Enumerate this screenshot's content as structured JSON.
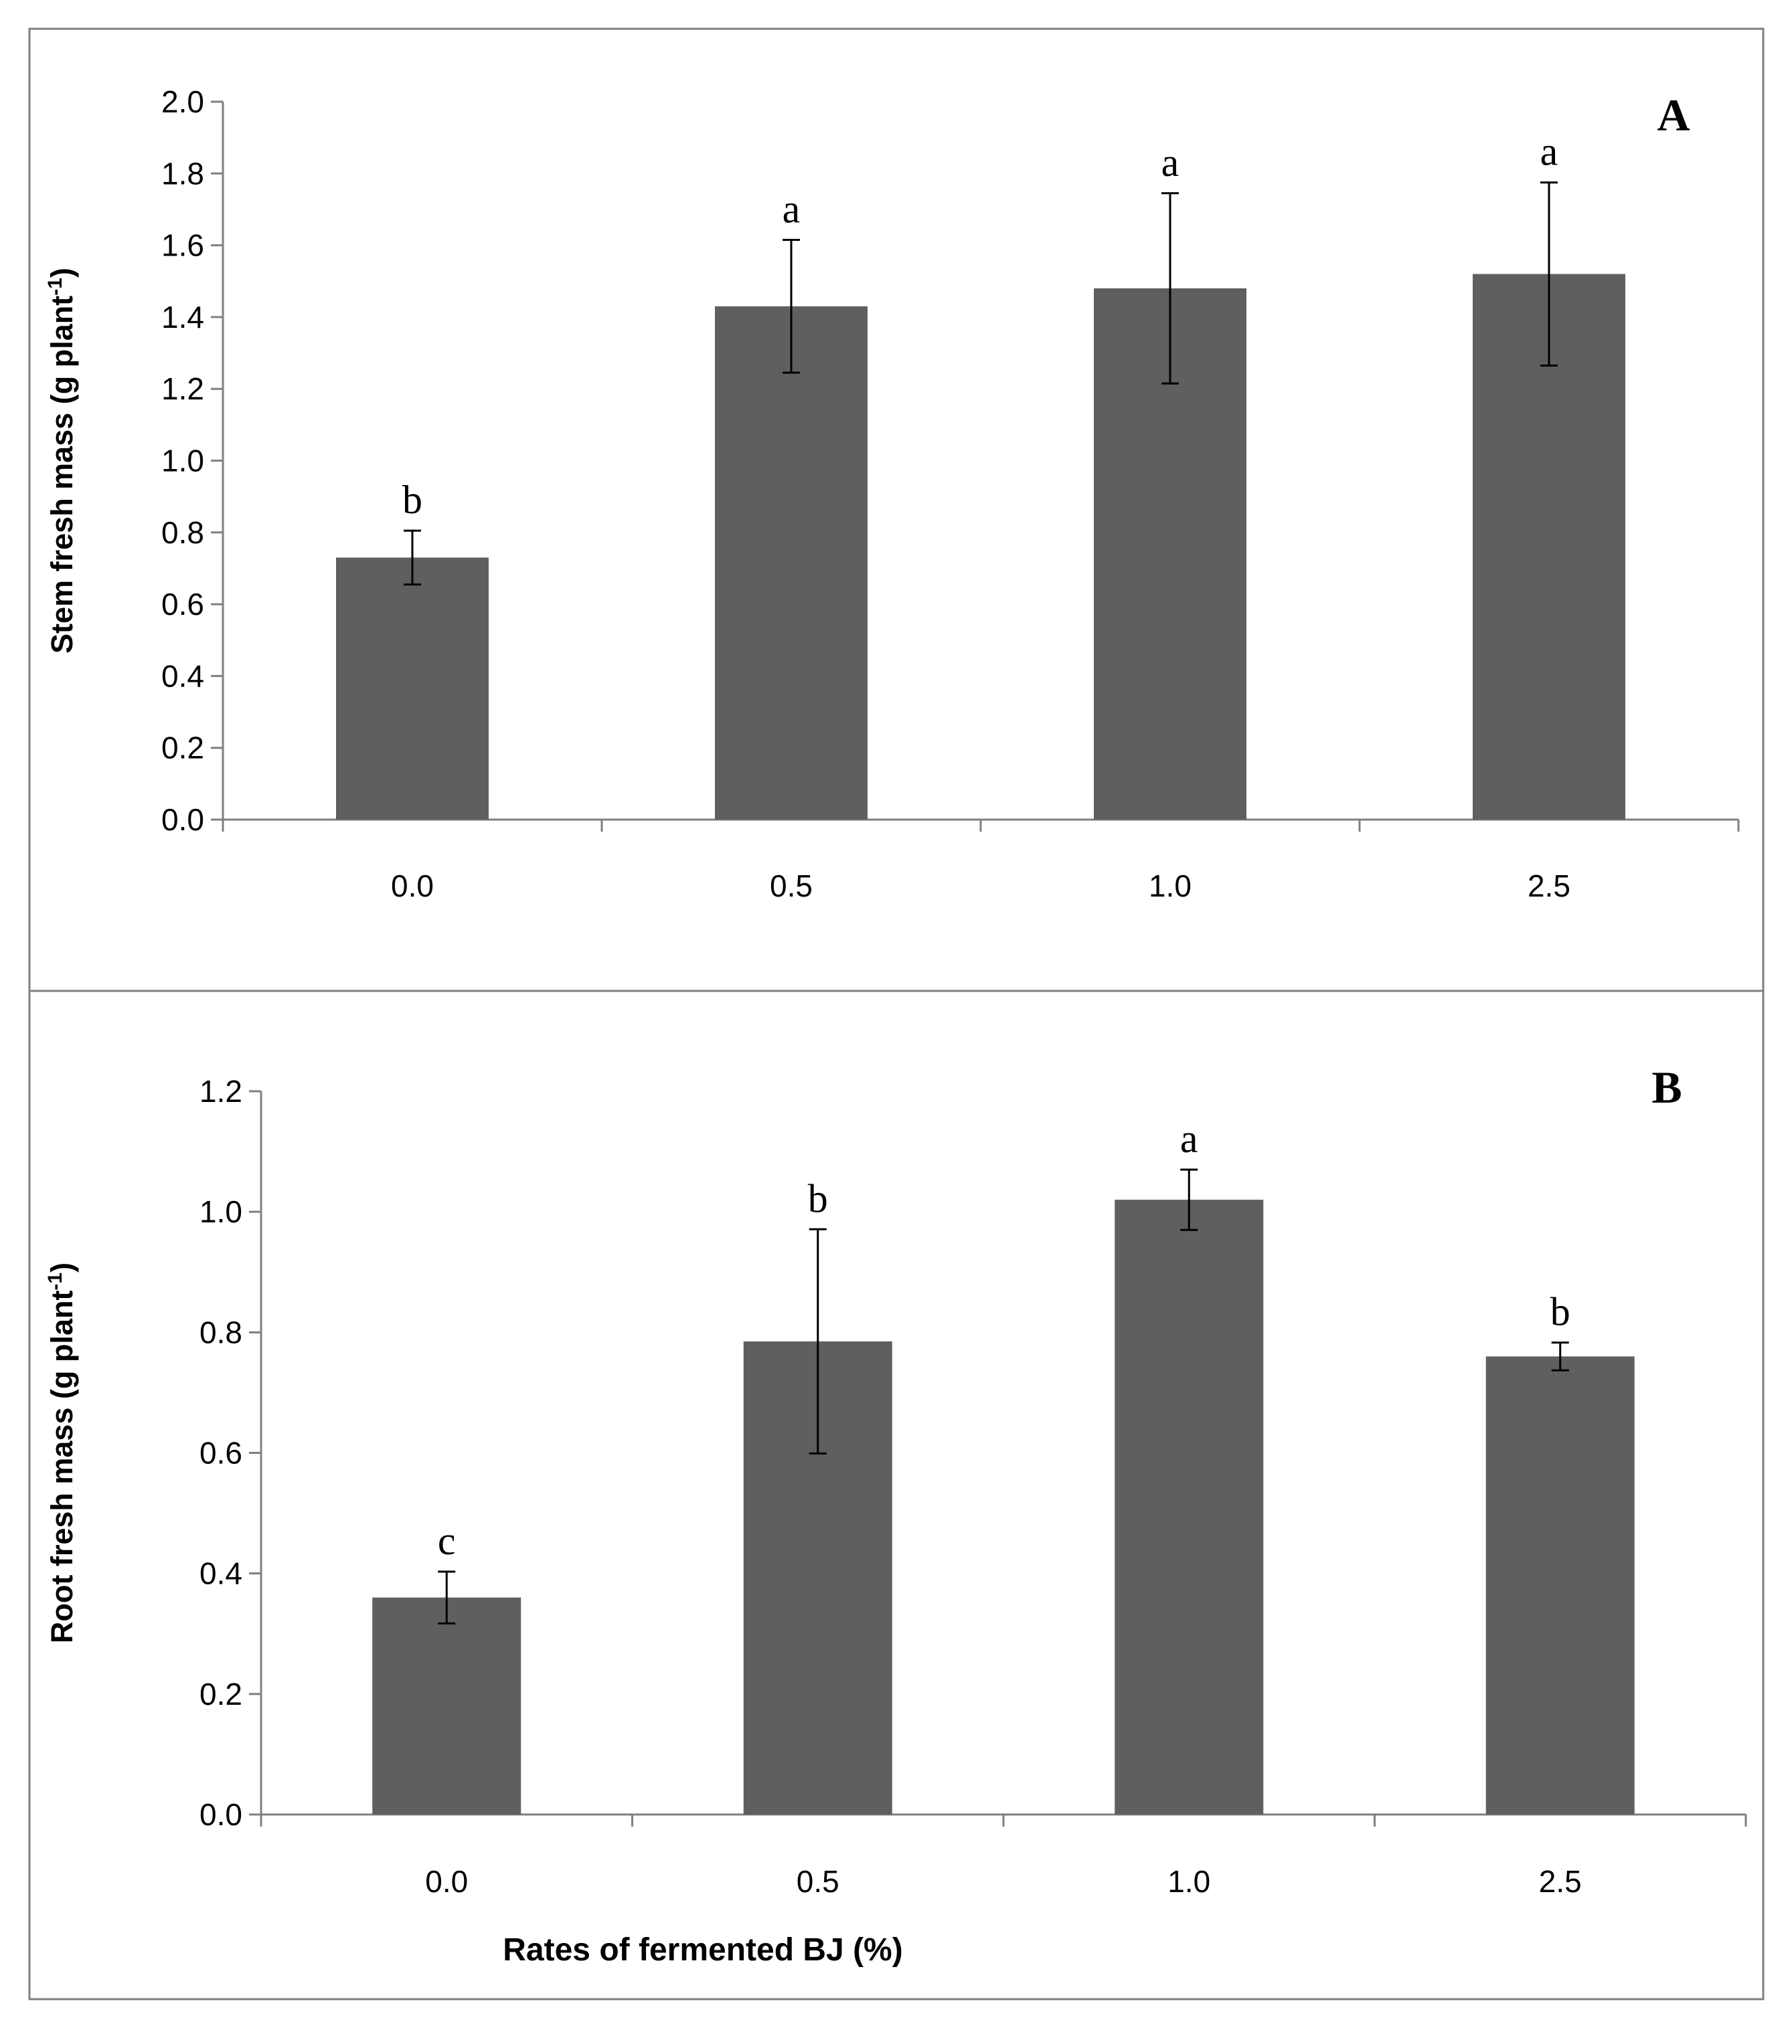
{
  "chart_data": [
    {
      "type": "bar",
      "panel_label": "A",
      "categories": [
        "0.0",
        "0.5",
        "1.0",
        "2.5"
      ],
      "values": [
        0.73,
        1.43,
        1.48,
        1.52
      ],
      "errors": [
        0.075,
        0.185,
        0.265,
        0.255
      ],
      "significance": [
        "b",
        "a",
        "a",
        "a"
      ],
      "ylabel_main": "Stem fresh mass (g plant",
      "ylabel_sup": "-1",
      "ylabel_end": ")",
      "xlabel": "",
      "ylim": [
        0,
        2.0
      ],
      "yticks": [
        "0.0",
        "0.2",
        "0.4",
        "0.6",
        "0.8",
        "1.0",
        "1.2",
        "1.4",
        "1.6",
        "1.8",
        "2.0"
      ],
      "grid": false
    },
    {
      "type": "bar",
      "panel_label": "B",
      "categories": [
        "0.0",
        "0.5",
        "1.0",
        "2.5"
      ],
      "values": [
        0.36,
        0.785,
        1.02,
        0.76
      ],
      "errors": [
        0.043,
        0.186,
        0.05,
        0.023
      ],
      "significance": [
        "c",
        "b",
        "a",
        "b"
      ],
      "ylabel_main": "Root fresh mass (g plant",
      "ylabel_sup": "-1",
      "ylabel_end": ")",
      "xlabel": "Rates of fermented BJ (%)",
      "ylim": [
        0,
        1.2
      ],
      "yticks": [
        "0.0",
        "0.2",
        "0.4",
        "0.6",
        "0.8",
        "1.0",
        "1.2"
      ],
      "grid": false
    }
  ],
  "colors": {
    "bar": "#5f5f5f",
    "axis": "#7f7f7f",
    "text": "#000000"
  }
}
